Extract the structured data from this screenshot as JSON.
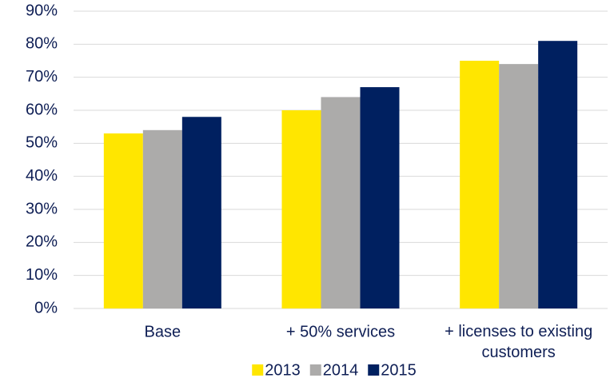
{
  "chart_data": {
    "type": "bar",
    "categories": [
      "Base",
      "+ 50% services",
      "+ licenses to existing customers"
    ],
    "series": [
      {
        "name": "2013",
        "color": "#ffe600",
        "values": [
          53,
          60,
          75
        ]
      },
      {
        "name": "2014",
        "color": "#acabaa",
        "values": [
          54,
          64,
          74
        ]
      },
      {
        "name": "2015",
        "color": "#002060",
        "values": [
          58,
          67,
          81
        ]
      }
    ],
    "ylim": [
      0,
      90
    ],
    "yticks": [
      {
        "value": 0,
        "label": "0%"
      },
      {
        "value": 10,
        "label": "10%"
      },
      {
        "value": 20,
        "label": "20%"
      },
      {
        "value": 30,
        "label": "30%"
      },
      {
        "value": 40,
        "label": "40%"
      },
      {
        "value": 50,
        "label": "50%"
      },
      {
        "value": 60,
        "label": "60%"
      },
      {
        "value": 70,
        "label": "70%"
      },
      {
        "value": 80,
        "label": "80%"
      },
      {
        "value": 90,
        "label": "90%"
      }
    ],
    "grid": true,
    "legend": "bottom"
  }
}
